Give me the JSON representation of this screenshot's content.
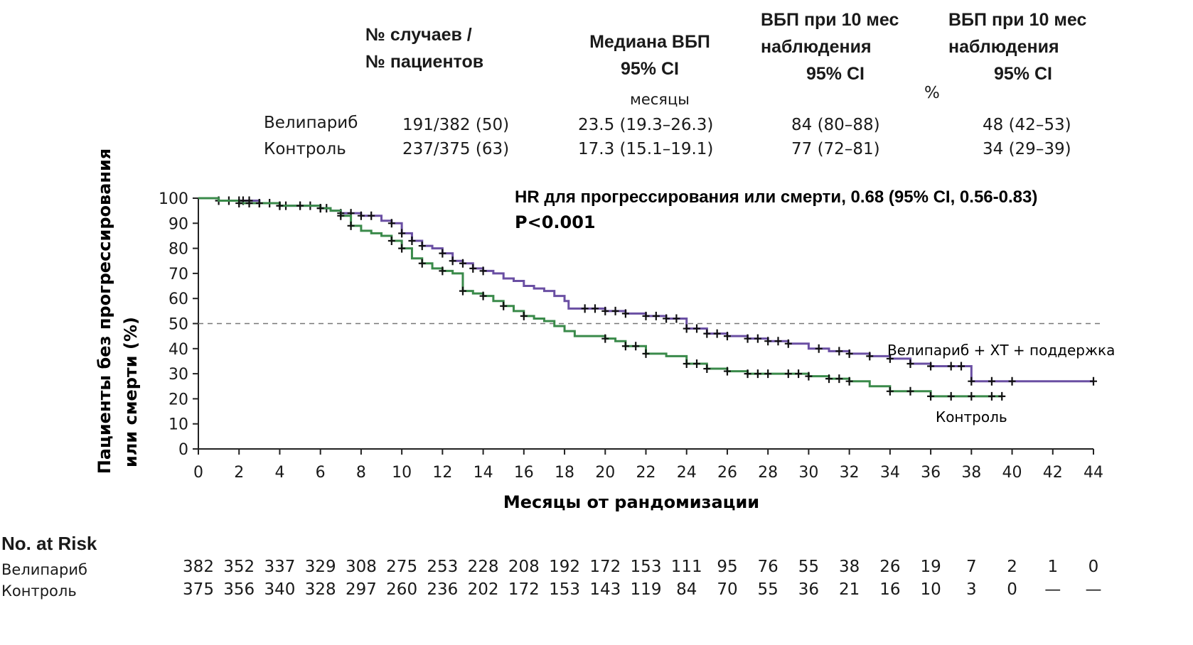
{
  "header": {
    "col_cases": "№ случаев /\n№ пациентов",
    "col_median_line1": "Медиана ВБП",
    "col_median_line2": "95% CI",
    "col_median_units": "месяцы",
    "col_pfs10_a_line1": "ВБП при 10 мес",
    "col_pfs10_a_line2": "наблюдения",
    "col_pfs10_a_line3": "95% CI",
    "col_pfs10_b_line1": "ВБП при 10 мес",
    "col_pfs10_b_line2": "наблюдения",
    "col_pfs10_b_line3": "95% CI",
    "col_percent": "%"
  },
  "summary_rows": [
    {
      "group": "Велипариб",
      "cases": "191/382 (50)",
      "median": "23.5 (19.3–26.3)",
      "pfs_a": "84 (80–88)",
      "pfs_b": "48 (42–53)"
    },
    {
      "group": "Контроль",
      "cases": "237/375 (63)",
      "median": "17.3 (15.1–19.1)",
      "pfs_a": "77 (72–81)",
      "pfs_b": "34 (29–39)"
    }
  ],
  "chart_data": {
    "type": "line",
    "title": "",
    "annotation_line1": "HR для прогрессирования или смерти, 0.68 (95% CI, 0.56-0.83)",
    "annotation_line2": "P<0.001",
    "xlabel": "Месяцы от рандомизации",
    "ylabel_line1": "Пациенты без прогрессирования",
    "ylabel_line2": "или смерти (%)",
    "xlim": [
      0,
      44
    ],
    "ylim": [
      0,
      100
    ],
    "x_ticks": [
      0,
      2,
      4,
      6,
      8,
      10,
      12,
      14,
      16,
      18,
      20,
      22,
      24,
      26,
      28,
      30,
      32,
      34,
      36,
      38,
      40,
      42,
      44
    ],
    "y_ticks": [
      0,
      10,
      20,
      30,
      40,
      50,
      60,
      70,
      80,
      90,
      100
    ],
    "reference_line_y": 50,
    "grid": false,
    "series": [
      {
        "name": "Велипариб + ХТ + поддержка",
        "color": "#6a4fa3",
        "x": [
          0,
          0.5,
          1,
          1.5,
          2,
          3,
          4,
          5,
          6,
          6.5,
          7,
          7.5,
          8,
          8.5,
          9,
          9.5,
          10,
          10.5,
          11,
          11.5,
          12,
          12.5,
          13,
          13.5,
          14,
          14.5,
          15,
          15.5,
          16,
          16.5,
          17,
          17.5,
          18,
          18.2,
          19,
          20,
          21,
          22,
          23,
          24,
          25,
          26,
          27,
          28,
          29,
          30,
          31,
          32,
          33,
          34,
          35,
          36,
          37,
          38,
          39,
          40,
          42,
          44
        ],
        "y": [
          100,
          100,
          99,
          99,
          99,
          98,
          97,
          97,
          96,
          95,
          94,
          94,
          93,
          93,
          91,
          90,
          86,
          83,
          81,
          80,
          78,
          75,
          74,
          72,
          71,
          70,
          68,
          67,
          65,
          64,
          63,
          61,
          59,
          56,
          56,
          55,
          54,
          53,
          52,
          48,
          46,
          45,
          44,
          43,
          42,
          40,
          39,
          38,
          37,
          36,
          34,
          33,
          33,
          27,
          27,
          27,
          27,
          27
        ],
        "censor_x": [
          1,
          1.5,
          2,
          2.2,
          2.5,
          3,
          3.5,
          4,
          4.3,
          5,
          5.5,
          6,
          6.3,
          7,
          7.5,
          8,
          8.5,
          9.5,
          10,
          10.5,
          11,
          12,
          12.5,
          13,
          13.5,
          14,
          19,
          19.5,
          20,
          20.5,
          21,
          22,
          22.5,
          23,
          23.5,
          24,
          24.5,
          25,
          25.5,
          26,
          27,
          27.5,
          28,
          28.5,
          29,
          30.5,
          31.5,
          32,
          33,
          34,
          35,
          36,
          37,
          37.5,
          38,
          39,
          40,
          44
        ]
      },
      {
        "name": "Контроль",
        "color": "#3a8a4a",
        "x": [
          0,
          0.5,
          1,
          1.5,
          2,
          3,
          4,
          5,
          6,
          6.5,
          7,
          7.5,
          8,
          8.5,
          9,
          9.5,
          10,
          10.5,
          11,
          11.5,
          12,
          12.5,
          13,
          13.5,
          14,
          14.5,
          15,
          15.5,
          16,
          16.5,
          17,
          17.5,
          18,
          18.5,
          19,
          20,
          20.5,
          21,
          22,
          23,
          24,
          25,
          26,
          27,
          28,
          29,
          30,
          31,
          32,
          33,
          34,
          35,
          36,
          37,
          38,
          39,
          39.5
        ],
        "y": [
          100,
          100,
          99,
          99,
          98,
          98,
          97,
          97,
          96,
          95,
          93,
          89,
          87,
          86,
          85,
          83,
          80,
          76,
          74,
          72,
          71,
          70,
          63,
          62,
          61,
          59,
          57,
          55,
          53,
          52,
          51,
          49,
          47,
          45,
          45,
          44,
          43,
          41,
          38,
          37,
          34,
          32,
          31,
          30,
          30,
          30,
          29,
          28,
          27,
          25,
          23,
          23,
          21,
          21,
          21,
          21,
          21
        ],
        "censor_x": [
          2,
          2.5,
          3,
          4,
          5,
          6,
          7,
          7.5,
          9.5,
          10,
          11,
          12,
          13,
          14,
          15,
          16,
          20,
          21,
          21.5,
          22,
          24,
          24.5,
          25,
          26,
          27,
          27.5,
          28,
          29,
          29.5,
          30,
          31,
          31.5,
          32,
          34,
          35,
          36,
          37,
          38,
          39,
          39.5
        ]
      }
    ],
    "series_labels": [
      "Велипариб + ХТ + поддержка",
      "Контроль"
    ]
  },
  "risk_table": {
    "title": "No. at Risk",
    "rows": [
      {
        "label": "Велипариб",
        "values": [
          "382",
          "352",
          "337",
          "329",
          "308",
          "275",
          "253",
          "228",
          "208",
          "192",
          "172",
          "153",
          "111",
          "95",
          "76",
          "55",
          "38",
          "26",
          "19",
          "7",
          "2",
          "1",
          "0"
        ]
      },
      {
        "label": "Контроль",
        "values": [
          "375",
          "356",
          "340",
          "328",
          "297",
          "260",
          "236",
          "202",
          "172",
          "153",
          "143",
          "119",
          "84",
          "70",
          "55",
          "36",
          "21",
          "16",
          "10",
          "3",
          "0",
          "—",
          "—"
        ]
      }
    ]
  }
}
